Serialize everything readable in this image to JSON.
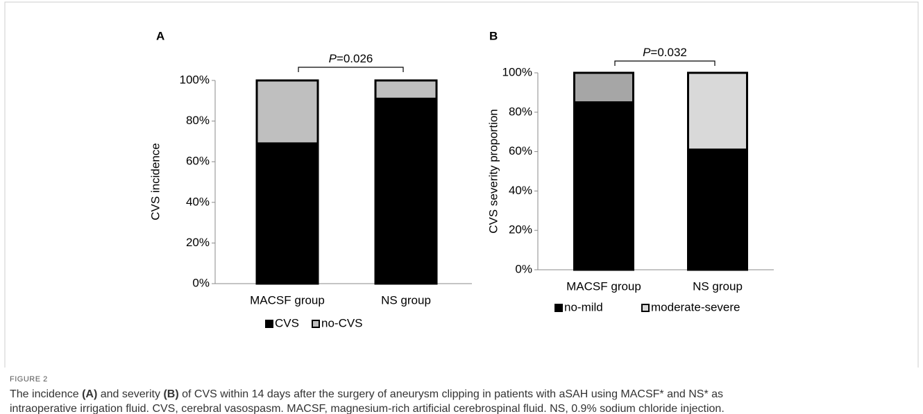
{
  "chart_data": [
    {
      "type": "stacked-bar",
      "title": "A",
      "y_label": "CVS incidence",
      "annotation": {
        "symbol": "P",
        "text": "=0.026"
      },
      "categories": [
        "MACSF group",
        "NS group"
      ],
      "series": [
        {
          "name": "CVS",
          "color": "#000000",
          "values": [
            69,
            91
          ]
        },
        {
          "name": "no-CVS",
          "color": "#bfbfbf",
          "values": [
            31,
            9
          ]
        }
      ],
      "ylim": [
        0,
        100
      ],
      "yticks": [
        {
          "value": 0,
          "label": "0%"
        },
        {
          "value": 20,
          "label": "20%"
        },
        {
          "value": 40,
          "label": "40%"
        },
        {
          "value": 60,
          "label": "60%"
        },
        {
          "value": 80,
          "label": "80%"
        },
        {
          "value": 100,
          "label": "100%"
        }
      ],
      "legend": "bottom"
    },
    {
      "type": "stacked-bar",
      "title": "B",
      "y_label": "CVS severity proportion",
      "annotation": {
        "symbol": "P",
        "text": "=0.032"
      },
      "categories": [
        "MACSF group",
        "NS group"
      ],
      "series": [
        {
          "name": "no-mild",
          "color": "#000000",
          "values": [
            85,
            61
          ]
        },
        {
          "name": "moderate-severe",
          "color": "#d9d9d9",
          "colors": [
            "#a6a6a6",
            "#d9d9d9"
          ],
          "values": [
            15,
            39
          ]
        }
      ],
      "ylim": [
        0,
        100
      ],
      "yticks": [
        {
          "value": 0,
          "label": "0%"
        },
        {
          "value": 20,
          "label": "20%"
        },
        {
          "value": 40,
          "label": "40%"
        },
        {
          "value": 60,
          "label": "60%"
        },
        {
          "value": 80,
          "label": "80%"
        },
        {
          "value": 100,
          "label": "100%"
        }
      ],
      "legend": "bottom"
    }
  ],
  "figure": {
    "label": "FIGURE 2",
    "caption": [
      "The incidence ",
      "(A)",
      " and severity ",
      "(B)",
      " of CVS within 14 days after the surgery of aneurysm clipping in patients with aSAH using MACSF* and NS* as",
      "intraoperative irrigation fluid. CVS, cerebral vasospasm. MACSF, magnesium-rich artificial cerebrospinal fluid. NS, 0.9% sodium chloride injection."
    ]
  }
}
